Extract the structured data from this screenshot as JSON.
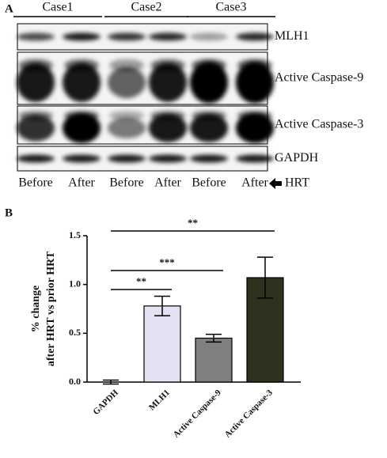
{
  "panel_a": {
    "label": "A",
    "cases": [
      "Case1",
      "Case2",
      "Case3"
    ],
    "rows": [
      "MLH1",
      "Active Caspase-9",
      "Active Caspase-3",
      "GAPDH"
    ],
    "lanes": [
      "Before",
      "After",
      "Before",
      "After",
      "Before",
      "After"
    ],
    "arrow_label": "HRT"
  },
  "chart_data": {
    "type": "bar",
    "panel_label": "B",
    "ylabel_lines": [
      "% change",
      "after HRT vs prior HRT"
    ],
    "categories": [
      "GAPDH",
      "MLH1",
      "Active Caspase-9",
      "Active Caspase-3"
    ],
    "values": [
      0.0,
      0.78,
      0.45,
      1.07
    ],
    "errors": [
      0.02,
      0.1,
      0.04,
      0.21
    ],
    "colors": [
      "#ffffff",
      "#e2e2f2",
      "#808080",
      "#30301f"
    ],
    "ylim": [
      0,
      1.5
    ],
    "yticks": [
      {
        "value": 0,
        "label": "0.0"
      },
      {
        "value": 0.5,
        "label": "0.5"
      },
      {
        "value": 1,
        "label": "1.0"
      },
      {
        "value": 1.5,
        "label": "1.5"
      }
    ],
    "annotations": [
      "**",
      "***",
      "**"
    ]
  }
}
